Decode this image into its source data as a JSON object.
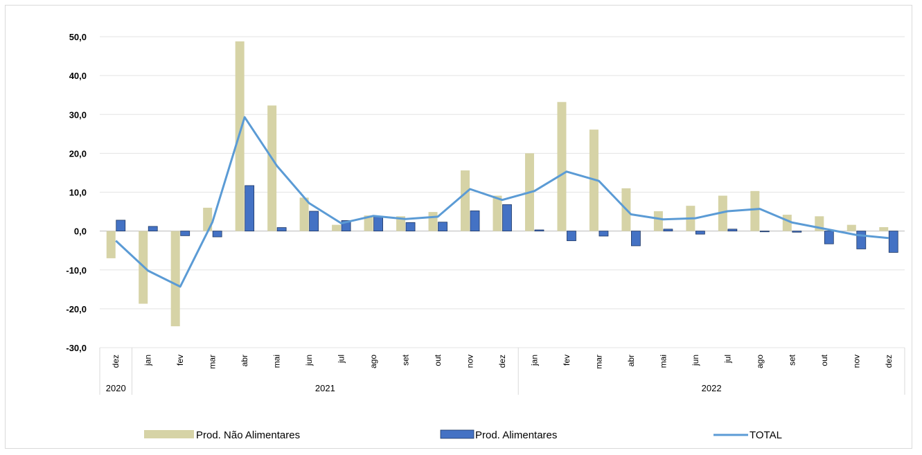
{
  "chart_data": {
    "type": "bar",
    "title": "",
    "xlabel": "",
    "ylabel": "",
    "ylim": [
      -30,
      50
    ],
    "yticks": [
      "50,0",
      "40,0",
      "30,0",
      "20,0",
      "10,0",
      "0,0",
      "-10,0",
      "-20,0",
      "-30,0"
    ],
    "ytick_values": [
      50,
      40,
      30,
      20,
      10,
      0,
      -10,
      -20,
      -30
    ],
    "grid": true,
    "legend_position": "bottom",
    "categories": [
      "dez",
      "jan",
      "fev",
      "mar",
      "abr",
      "mai",
      "jun",
      "jul",
      "ago",
      "set",
      "out",
      "nov",
      "dez",
      "jan",
      "fev",
      "mar",
      "abr",
      "mai",
      "jun",
      "jul",
      "ago",
      "set",
      "out",
      "nov",
      "dez"
    ],
    "year_groups": [
      {
        "label": "2020",
        "count": 1
      },
      {
        "label": "2021",
        "count": 12
      },
      {
        "label": "2022",
        "count": 12
      }
    ],
    "series": [
      {
        "name": "Prod. Não Alimentares",
        "type": "bar",
        "color": "#d6d3a6",
        "values": [
          -7.0,
          -18.7,
          -24.5,
          6.0,
          48.8,
          32.3,
          8.6,
          1.6,
          4.0,
          3.8,
          4.9,
          15.6,
          9.1,
          20.0,
          33.2,
          26.1,
          11.0,
          5.1,
          6.5,
          9.1,
          10.3,
          4.2,
          3.8,
          1.6,
          1.0
        ]
      },
      {
        "name": "Prod. Alimentares",
        "type": "bar",
        "color": "#4472c4",
        "values": [
          2.8,
          1.2,
          -1.2,
          -1.5,
          11.7,
          0.9,
          5.1,
          2.7,
          3.8,
          2.2,
          2.3,
          5.2,
          6.8,
          0.3,
          -2.5,
          -1.3,
          -3.8,
          0.5,
          -0.8,
          0.5,
          -0.2,
          -0.3,
          -3.3,
          -4.6,
          -5.5
        ]
      },
      {
        "name": "TOTAL",
        "type": "line",
        "color": "#5b9bd5",
        "values": [
          -2.5,
          -10.2,
          -14.3,
          2.3,
          29.3,
          16.8,
          7.2,
          2.0,
          3.9,
          3.1,
          3.7,
          10.8,
          8.0,
          10.3,
          15.3,
          12.9,
          4.3,
          3.0,
          3.3,
          5.1,
          5.7,
          2.2,
          0.6,
          -1.0,
          -1.8
        ]
      }
    ]
  }
}
